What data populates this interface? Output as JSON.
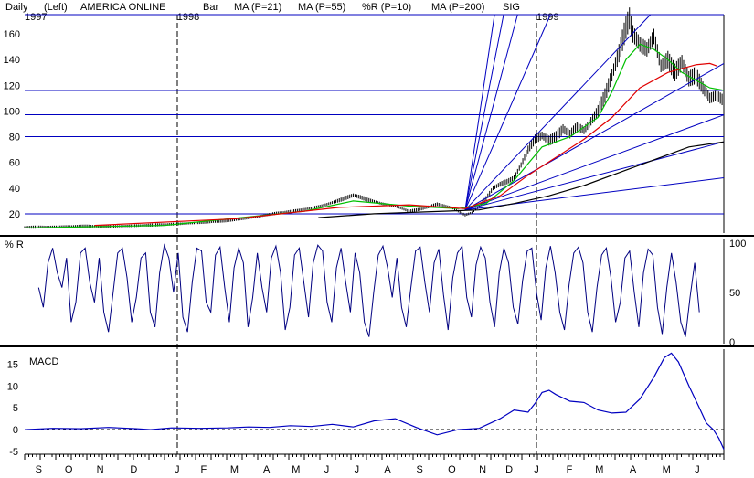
{
  "header": {
    "period": "Daily",
    "axis": "(Left)",
    "symbol": "AMERICA ONLINE",
    "chart_style": "Bar",
    "legend": [
      {
        "label": "MA (P=21)",
        "color": "#00c000"
      },
      {
        "label": "MA (P=55)",
        "color": "#e00000"
      },
      {
        "label": "%R (P=10)",
        "color": "#0000c0"
      },
      {
        "label": "MA (P=200)",
        "color": "#000000"
      },
      {
        "label": "SIG",
        "color": "#0000c0"
      }
    ]
  },
  "colors": {
    "price_bars": "#000000",
    "ma21": "#00c000",
    "ma55": "#e00000",
    "ma200": "#000000",
    "trendlines": "#0000c0",
    "williams_r": "#000080",
    "macd": "#0000c0",
    "zero_line": "#000000"
  },
  "chart_data": [
    {
      "type": "line",
      "panel": "price",
      "ylim": [
        5,
        175
      ],
      "yticks": [
        20,
        40,
        60,
        80,
        100,
        120,
        140,
        160
      ],
      "horizontal_lines": [
        20,
        80,
        97,
        116,
        175
      ],
      "x_range": [
        0,
        100
      ],
      "year_markers": [
        {
          "label": "1997",
          "x": 0
        },
        {
          "label": "1998",
          "x": 21.8
        },
        {
          "label": "1999",
          "x": 73.2
        }
      ],
      "price": [
        [
          0,
          9.5
        ],
        [
          3,
          9.8
        ],
        [
          6,
          10.2
        ],
        [
          9,
          10.4
        ],
        [
          12,
          10.1
        ],
        [
          15,
          10.6
        ],
        [
          18,
          11.2
        ],
        [
          21,
          11.9
        ],
        [
          24,
          12.7
        ],
        [
          27,
          13.8
        ],
        [
          30,
          15.2
        ],
        [
          33,
          17.5
        ],
        [
          36,
          20.5
        ],
        [
          39,
          22.5
        ],
        [
          41,
          24.5
        ],
        [
          43,
          27
        ],
        [
          45,
          30.5
        ],
        [
          47,
          34.5
        ],
        [
          48,
          33
        ],
        [
          49,
          31
        ],
        [
          51,
          28
        ],
        [
          53,
          26
        ],
        [
          55,
          22
        ],
        [
          57,
          24
        ],
        [
          59,
          27.5
        ],
        [
          61,
          25
        ],
        [
          62,
          22
        ],
        [
          63,
          19
        ],
        [
          64,
          21
        ],
        [
          65,
          26
        ],
        [
          66,
          32
        ],
        [
          67,
          40
        ],
        [
          68,
          43
        ],
        [
          69,
          45
        ],
        [
          70,
          48
        ],
        [
          71,
          58
        ],
        [
          72,
          70
        ],
        [
          73,
          78
        ],
        [
          74,
          81
        ],
        [
          75,
          77
        ],
        [
          76,
          80
        ],
        [
          77,
          86
        ],
        [
          78,
          82
        ],
        [
          79,
          88
        ],
        [
          80,
          85
        ],
        [
          81,
          92
        ],
        [
          82,
          100
        ],
        [
          83,
          112
        ],
        [
          84,
          128
        ],
        [
          85,
          145
        ],
        [
          86,
          165
        ],
        [
          86.5,
          172
        ],
        [
          87,
          160
        ],
        [
          88,
          152
        ],
        [
          89,
          148
        ],
        [
          90,
          158
        ],
        [
          91,
          135
        ],
        [
          92,
          140
        ],
        [
          93,
          130
        ],
        [
          94,
          138
        ],
        [
          95,
          125
        ],
        [
          96,
          128
        ],
        [
          97,
          118
        ],
        [
          98,
          110
        ],
        [
          99,
          112
        ],
        [
          100,
          108
        ]
      ],
      "series": [
        {
          "name": "MA (P=21)",
          "points": [
            [
              0,
              9
            ],
            [
              20,
              11
            ],
            [
              40,
              22
            ],
            [
              47,
              30
            ],
            [
              55,
              26
            ],
            [
              62,
              24
            ],
            [
              66,
              28
            ],
            [
              70,
              46
            ],
            [
              74,
              72
            ],
            [
              78,
              80
            ],
            [
              82,
              95
            ],
            [
              84,
              115
            ],
            [
              86,
              140
            ],
            [
              88,
              152
            ],
            [
              90,
              148
            ],
            [
              92,
              140
            ],
            [
              94,
              130
            ],
            [
              96,
              124
            ],
            [
              98,
              118
            ],
            [
              100,
              116
            ]
          ]
        },
        {
          "name": "MA (P=55)",
          "points": [
            [
              10,
              11
            ],
            [
              30,
              16
            ],
            [
              45,
              25
            ],
            [
              55,
              27
            ],
            [
              63,
              24
            ],
            [
              68,
              34
            ],
            [
              72,
              50
            ],
            [
              76,
              64
            ],
            [
              80,
              78
            ],
            [
              84,
              95
            ],
            [
              88,
              118
            ],
            [
              92,
              130
            ],
            [
              96,
              136
            ],
            [
              98,
              137
            ],
            [
              99,
              135
            ]
          ]
        },
        {
          "name": "MA (P=200)",
          "points": [
            [
              42,
              17
            ],
            [
              50,
              20
            ],
            [
              60,
              22
            ],
            [
              65,
              23
            ],
            [
              70,
              28
            ],
            [
              75,
              34
            ],
            [
              80,
              42
            ],
            [
              85,
              52
            ],
            [
              90,
              62
            ],
            [
              95,
              72
            ],
            [
              100,
              76
            ]
          ]
        }
      ],
      "trendlines": [
        {
          "from": [
            63,
            23
          ],
          "to": [
            100,
            48
          ]
        },
        {
          "from": [
            63,
            23
          ],
          "to": [
            100,
            76
          ]
        },
        {
          "from": [
            63,
            23
          ],
          "to": [
            100,
            97
          ]
        },
        {
          "from": [
            63,
            23
          ],
          "to": [
            100,
            137
          ]
        },
        {
          "from": [
            63,
            23
          ],
          "to": [
            89.5,
            175
          ]
        },
        {
          "from": [
            63,
            23
          ],
          "to": [
            75.2,
            175
          ]
        },
        {
          "from": [
            63,
            23
          ],
          "to": [
            70.5,
            175
          ]
        },
        {
          "from": [
            63,
            23
          ],
          "to": [
            68.5,
            175
          ]
        },
        {
          "from": [
            63,
            23
          ],
          "to": [
            67.2,
            175
          ]
        }
      ]
    },
    {
      "type": "line",
      "panel": "williams_r",
      "title": "% R",
      "ylim": [
        0,
        100
      ],
      "yticks": [
        0,
        50,
        100
      ],
      "x_range": [
        0,
        100
      ],
      "values": [
        55,
        35,
        80,
        95,
        70,
        55,
        85,
        20,
        40,
        90,
        95,
        60,
        40,
        85,
        30,
        10,
        50,
        90,
        95,
        65,
        20,
        45,
        85,
        90,
        30,
        15,
        70,
        98,
        85,
        50,
        90,
        25,
        10,
        60,
        95,
        92,
        40,
        30,
        88,
        96,
        55,
        20,
        75,
        95,
        80,
        15,
        45,
        90,
        55,
        30,
        85,
        97,
        70,
        12,
        35,
        88,
        95,
        60,
        25,
        80,
        98,
        92,
        40,
        20,
        75,
        95,
        60,
        30,
        90,
        70,
        20,
        5,
        50,
        88,
        97,
        75,
        45,
        85,
        35,
        15,
        55,
        92,
        96,
        60,
        30,
        80,
        94,
        48,
        12,
        65,
        90,
        97,
        45,
        25,
        78,
        96,
        85,
        40,
        15,
        70,
        95,
        80,
        35,
        18,
        62,
        92,
        95,
        50,
        22,
        75,
        97,
        70,
        30,
        12,
        58,
        90,
        96,
        80,
        30,
        10,
        55,
        88,
        95,
        65,
        20,
        40,
        85,
        92,
        50,
        15,
        70,
        94,
        88,
        35,
        8,
        55,
        90,
        60,
        20,
        5,
        45,
        80,
        30
      ]
    },
    {
      "type": "line",
      "panel": "macd",
      "title": "MACD",
      "ylim": [
        -5,
        18
      ],
      "yticks": [
        -5,
        0,
        5,
        10,
        15
      ],
      "zero_line": 0,
      "x_range": [
        0,
        100
      ],
      "points": [
        [
          0,
          0
        ],
        [
          4,
          0.3
        ],
        [
          8,
          0.2
        ],
        [
          12,
          0.5
        ],
        [
          16,
          0.2
        ],
        [
          18,
          0
        ],
        [
          21,
          0.4
        ],
        [
          25,
          0.3
        ],
        [
          29,
          0.4
        ],
        [
          32,
          0.6
        ],
        [
          35,
          0.5
        ],
        [
          38,
          0.9
        ],
        [
          41,
          0.7
        ],
        [
          44,
          1.2
        ],
        [
          47,
          0.6
        ],
        [
          50,
          2
        ],
        [
          53,
          2.5
        ],
        [
          56,
          0.5
        ],
        [
          59,
          -1.2
        ],
        [
          62,
          0
        ],
        [
          65,
          0.3
        ],
        [
          68,
          2.5
        ],
        [
          70,
          4.5
        ],
        [
          72,
          4
        ],
        [
          73,
          6
        ],
        [
          74,
          8.5
        ],
        [
          75,
          9
        ],
        [
          76,
          8
        ],
        [
          78,
          6.5
        ],
        [
          80,
          6.2
        ],
        [
          82,
          4.5
        ],
        [
          84,
          3.8
        ],
        [
          86,
          4
        ],
        [
          88,
          7
        ],
        [
          90,
          12
        ],
        [
          91.5,
          16.5
        ],
        [
          92.5,
          17.5
        ],
        [
          93.5,
          15.5
        ],
        [
          95,
          10
        ],
        [
          96.5,
          5
        ],
        [
          97.5,
          1.5
        ],
        [
          98.5,
          0
        ],
        [
          99.3,
          -2
        ],
        [
          100,
          -4.5
        ]
      ]
    }
  ],
  "x_axis": {
    "months": [
      {
        "label": "S",
        "x": 2
      },
      {
        "label": "O",
        "x": 6.3
      },
      {
        "label": "N",
        "x": 10.8
      },
      {
        "label": "D",
        "x": 15.6
      },
      {
        "label": "J",
        "x": 21.8
      },
      {
        "label": "F",
        "x": 25.6
      },
      {
        "label": "M",
        "x": 30
      },
      {
        "label": "A",
        "x": 34.6
      },
      {
        "label": "M",
        "x": 38.8
      },
      {
        "label": "J",
        "x": 43.2
      },
      {
        "label": "J",
        "x": 47.5
      },
      {
        "label": "A",
        "x": 51.9
      },
      {
        "label": "S",
        "x": 56.5
      },
      {
        "label": "O",
        "x": 61.1
      },
      {
        "label": "N",
        "x": 65.5
      },
      {
        "label": "D",
        "x": 69.3
      },
      {
        "label": "J",
        "x": 73.2
      },
      {
        "label": "F",
        "x": 77.9
      },
      {
        "label": "M",
        "x": 82.2
      },
      {
        "label": "A",
        "x": 87
      },
      {
        "label": "M",
        "x": 91.8
      },
      {
        "label": "J",
        "x": 96.2
      }
    ]
  }
}
